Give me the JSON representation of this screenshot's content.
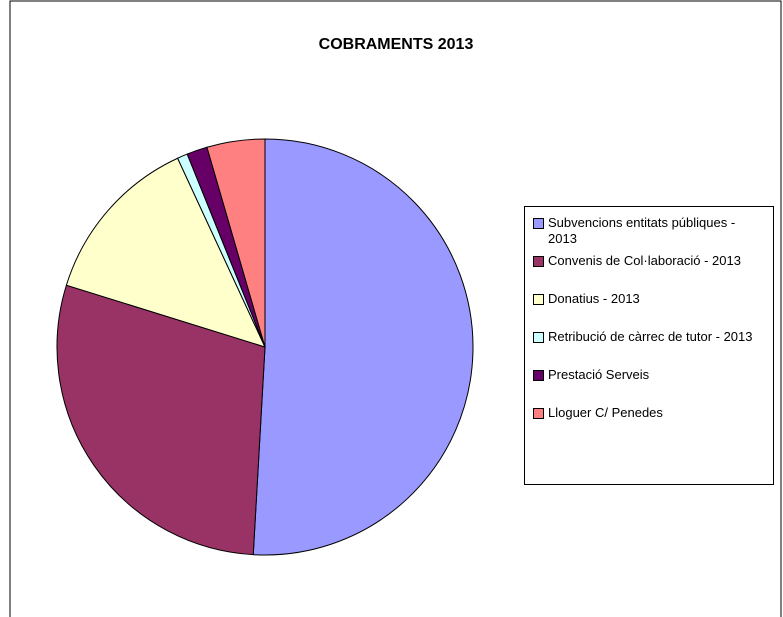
{
  "chart_data": {
    "type": "pie",
    "title": "COBRAMENTS 2013",
    "categories": [
      "Subvencions entitats públiques - 2013",
      "Convenis de Col·laboració - 2013",
      "Donatius - 2013",
      "Retribució de càrrec de tutor - 2013",
      "Prestació Serveis",
      "Lloguer C/ Penedes"
    ],
    "values": [
      50.9,
      28.9,
      13.3,
      0.8,
      1.6,
      4.5
    ],
    "colors": [
      "#9999ff",
      "#993366",
      "#ffffcc",
      "#ccffff",
      "#660066",
      "#ff8080"
    ],
    "legend": "right"
  }
}
